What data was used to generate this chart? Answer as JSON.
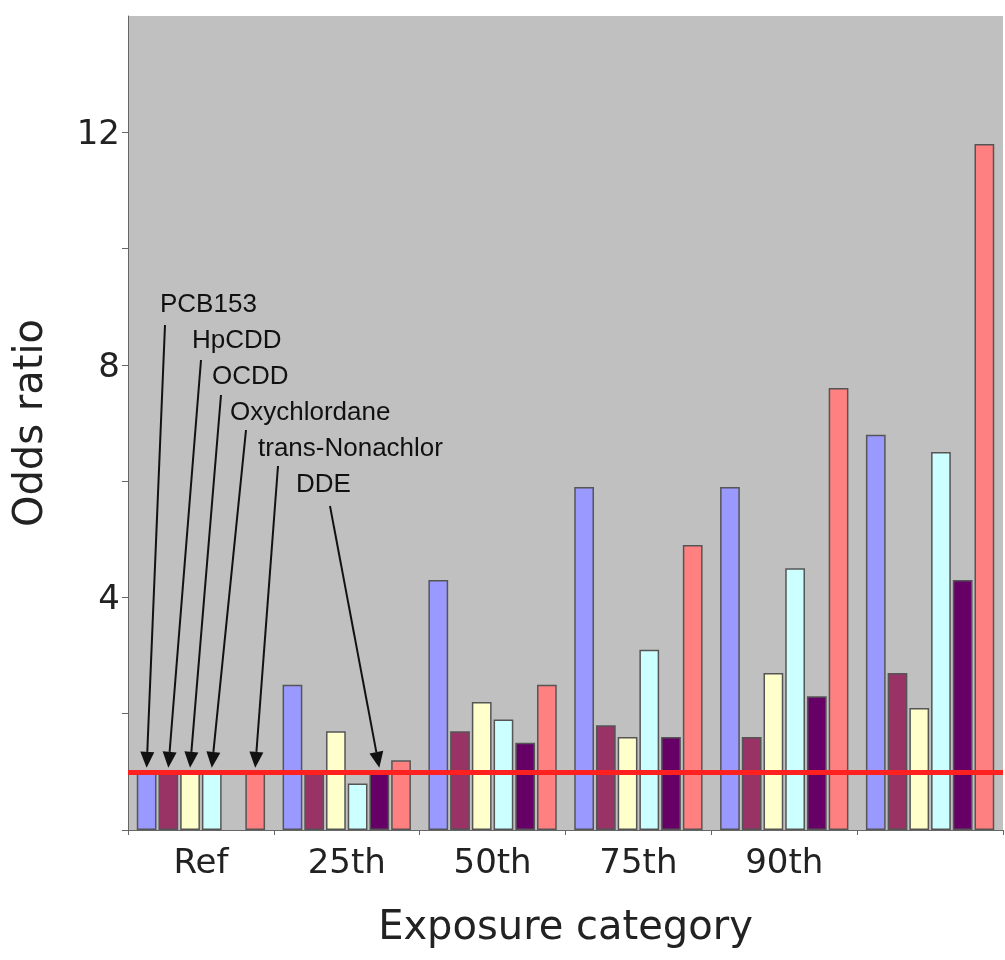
{
  "chart_data": {
    "type": "bar",
    "xlabel": "Exposure category",
    "ylabel": "Odds ratio",
    "categories": [
      "Ref",
      "25th",
      "50th",
      "75th",
      "90th",
      null
    ],
    "series": [
      {
        "color": "#9999ff",
        "values": [
          1,
          2.5,
          4.3,
          5.9,
          5.9,
          6.8
        ]
      },
      {
        "color": "#993366",
        "values": [
          1,
          1,
          1.7,
          1.8,
          1.6,
          2.7
        ]
      },
      {
        "color": "#ffffcc",
        "values": [
          1,
          1.7,
          2.2,
          1.6,
          2.7,
          2.1
        ]
      },
      {
        "color": "#ccffff",
        "values": [
          1,
          0.8,
          1.9,
          3.1,
          4.5,
          6.5
        ]
      },
      {
        "color": "#660066",
        "values": [
          null,
          1,
          1.5,
          1.6,
          2.3,
          4.3
        ]
      },
      {
        "color": "#ff8080",
        "values": [
          1,
          1.2,
          2.5,
          4.9,
          7.6,
          11.8
        ]
      }
    ],
    "ylim": [
      0,
      14
    ],
    "yticks": [
      {
        "value": 0,
        "label": null
      },
      {
        "value": 2,
        "label": null
      },
      4,
      {
        "value": 6,
        "label": null
      },
      8,
      {
        "value": 10,
        "label": null
      },
      12
    ],
    "ref_lines": [
      {
        "axis": "y",
        "value": 1,
        "color": "#ff2020"
      }
    ],
    "annotations": [
      "PCB153",
      "HpCDD",
      "OCDD",
      "Oxychlordane",
      "trans-Nonachlor",
      "DDE"
    ],
    "grid": false
  }
}
